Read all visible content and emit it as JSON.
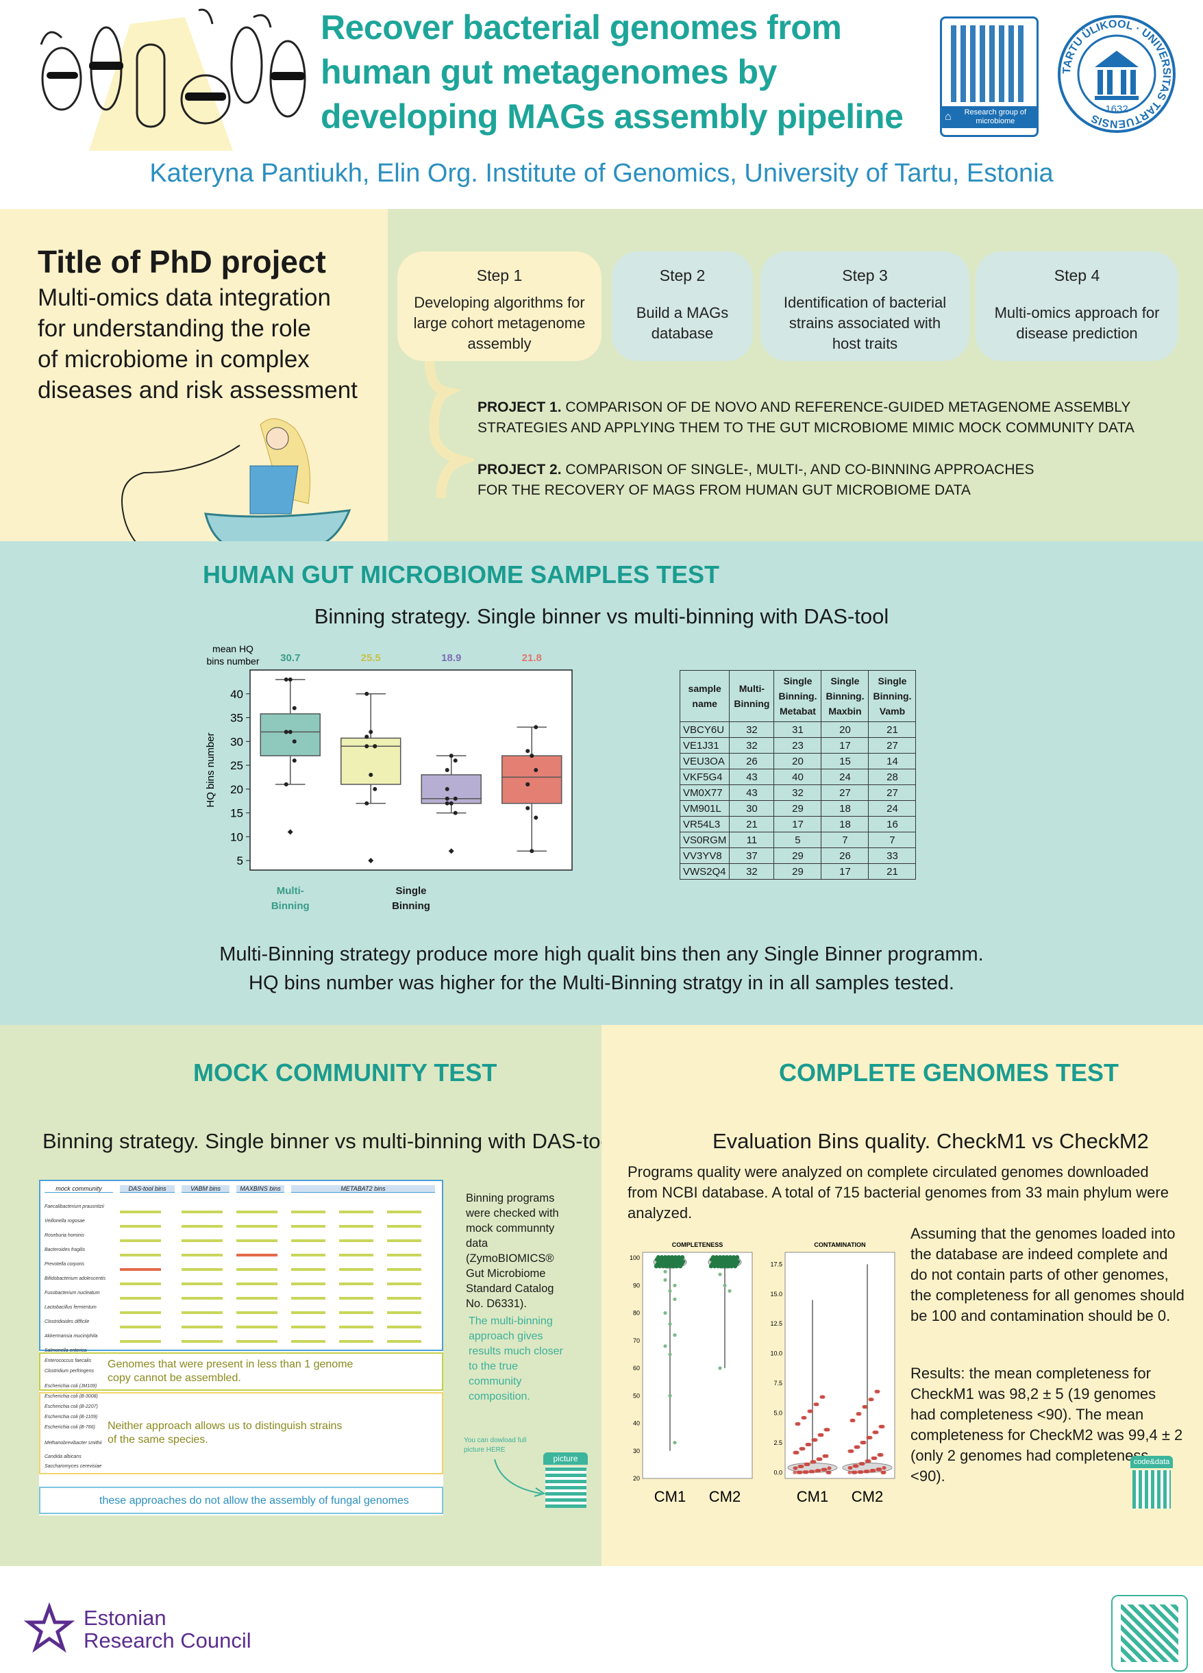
{
  "header": {
    "title_lines": [
      "Recover bacterial genomes from",
      "human gut metagenomes by",
      "developing MAGs assembly pipeline"
    ],
    "qr_label": "Research group of microbiome",
    "university_seal": "TARTU ÜLIKOOL UNIVERSITAS TARTUENSIS 1632",
    "authors": "Kateryna Pantiukh, Elin Org. Institute of Genomics, University of Tartu, Estonia"
  },
  "phd": {
    "title": "Title of PhD project",
    "lines": [
      "Multi-omics data integration",
      "for understanding the role",
      "of microbiome in complex",
      "diseases and risk assessment"
    ]
  },
  "steps": [
    {
      "label": "Step 1",
      "text": "Developing algorithms for large cohort metagenome assembly"
    },
    {
      "label": "Step 2",
      "text": "Build a MAGs database"
    },
    {
      "label": "Step 3",
      "text": "Identification of bacterial strains associated with host traits"
    },
    {
      "label": "Step 4",
      "text": "Multi-omics approach for disease prediction"
    }
  ],
  "projects": [
    {
      "label": "PROJECT 1.",
      "line1": "COMPARISON OF DE NOVO AND REFERENCE-GUIDED METAGENOME ASSEMBLY",
      "line2": "STRATEGIES AND APPLYING THEM TO THE GUT MICROBIOME MIMIC MOCK COMMUNITY DATA"
    },
    {
      "label": "PROJECT 2.",
      "line1": "COMPARISON OF SINGLE-, MULTI-, AND CO-BINNING APPROACHES",
      "line2": "FOR THE RECOVERY OF MAGS FROM HUMAN GUT MICROBIOME DATA"
    }
  ],
  "human_gut": {
    "title": "HUMAN GUT MICROBIOME SAMPLES TEST",
    "subtitle": "Binning strategy. Single binner vs multi-binning with DAS-tool",
    "conclusion_lines": [
      "Multi-Binning strategy produce more high qualit bins then any Single Binner programm.",
      "HQ bins number was higher for the Multi-Binning stratgy in in all samples tested."
    ]
  },
  "chart_data": [
    {
      "type": "box",
      "ylabel": "HQ bins number",
      "ylim": [
        3,
        45
      ],
      "yticks": [
        5,
        10,
        15,
        20,
        25,
        30,
        35,
        40
      ],
      "mean_label": "mean HQ bins number",
      "groups": [
        {
          "name": "Multi-Binning",
          "mean": "30.7",
          "color": "#8fc9bd",
          "mean_color": "#3a9c87",
          "values": [
            32,
            32,
            26,
            43,
            43,
            30,
            21,
            11,
            37,
            32
          ],
          "q1": 27,
          "median": 32,
          "q3": 35.8,
          "whisker_low": 21,
          "whisker_high": 43,
          "outliers": [
            11
          ]
        },
        {
          "name": "Metabat",
          "mean": "25.5",
          "color": "#eef0b4",
          "mean_color": "#c7c14a",
          "values": [
            31,
            23,
            20,
            40,
            32,
            29,
            17,
            5,
            29,
            29
          ],
          "q1": 21,
          "median": 29,
          "q3": 30.7,
          "whisker_low": 17,
          "whisker_high": 40,
          "outliers": [
            5
          ]
        },
        {
          "name": "Maxbin",
          "mean": "18.9",
          "color": "#b7afd3",
          "mean_color": "#7b6fb3",
          "values": [
            20,
            17,
            15,
            24,
            27,
            18,
            18,
            7,
            26,
            17
          ],
          "q1": 17,
          "median": 18,
          "q3": 23,
          "whisker_low": 15,
          "whisker_high": 27,
          "outliers": [
            7
          ]
        },
        {
          "name": "Vamb",
          "mean": "21.8",
          "color": "#e47f74",
          "mean_color": "#e0776c",
          "values": [
            21,
            27,
            14,
            28,
            27,
            24,
            16,
            7,
            33,
            21
          ],
          "q1": 17,
          "median": 22.5,
          "q3": 27,
          "whisker_low": 7,
          "whisker_high": 33,
          "outliers": []
        }
      ],
      "xlabels": [
        {
          "lines": [
            "Multi-",
            "Binning"
          ],
          "color": "#3a9c87"
        },
        {
          "lines": [
            "Single",
            "Binning"
          ],
          "color": "#1a1a1a"
        }
      ]
    },
    {
      "type": "table",
      "columns": [
        [
          "sample",
          "name"
        ],
        [
          "Multi-",
          "Binning"
        ],
        [
          "Single",
          "Binning.",
          "Metabat"
        ],
        [
          "Single",
          "Binning.",
          "Maxbin"
        ],
        [
          "Single",
          "Binning.",
          "Vamb"
        ]
      ],
      "rows": [
        [
          "VBCY6U",
          "32",
          "31",
          "20",
          "21"
        ],
        [
          "VE1J31",
          "32",
          "23",
          "17",
          "27"
        ],
        [
          "VEU3OA",
          "26",
          "20",
          "15",
          "14"
        ],
        [
          "VKF5G4",
          "43",
          "40",
          "24",
          "28"
        ],
        [
          "VM0X77",
          "43",
          "32",
          "27",
          "27"
        ],
        [
          "VM901L",
          "30",
          "29",
          "18",
          "24"
        ],
        [
          "VR54L3",
          "21",
          "17",
          "18",
          "16"
        ],
        [
          "VS0RGM",
          "11",
          "5",
          "7",
          "7"
        ],
        [
          "VV3YV8",
          "37",
          "29",
          "26",
          "33"
        ],
        [
          "VWS2Q4",
          "32",
          "29",
          "17",
          "21"
        ]
      ]
    },
    {
      "type": "violin",
      "title": "COMPLETENESS",
      "categories": [
        "CM1",
        "CM2"
      ],
      "yticks": [
        20,
        30,
        40,
        50,
        60,
        70,
        80,
        90,
        100
      ],
      "ylim": [
        20,
        102
      ],
      "mean": [
        98.2,
        99.4
      ]
    },
    {
      "type": "violin",
      "title": "CONTAMINATION",
      "categories": [
        "CM1",
        "CM2"
      ],
      "yticks": [
        "0.0",
        "2.5",
        "5.0",
        "7.5",
        "10.0",
        "12.5",
        "15.0",
        "17.5"
      ],
      "ylim": [
        -0.5,
        18.5
      ]
    }
  ],
  "mock": {
    "title": "MOCK COMMUNITY TEST",
    "subtitle": "Binning strategy. Single binner vs multi-binning with DAS-tool",
    "col_headers": [
      "mock community",
      "DAS-tool bins",
      "VABM bins",
      "MAXBINS bins",
      "METABAT2 bins"
    ],
    "species": [
      "Faecalibacterium prausnitzii",
      "Veillonella rogosae",
      "Roseburia hominis",
      "Bacteroides fragilis",
      "Prevotella corporis",
      "Bifidobacterium adolescentis",
      "Fusobacterium nucleatum",
      "Lactobacillus fermentum",
      "Clostridioides difficile",
      "Akkermansia muciniphila",
      "Salmonella enterica",
      "Enterococcus faecalis",
      "Clostridium perfringens",
      "Escherichia coli (JM109)",
      "Escherichia coli (B-3008)",
      "Escherichia coli (B-2207)",
      "Escherichia coli (B-1109)",
      "Escherichia coli (B-766)",
      "Methanobrevibacter smithii",
      "Candida albicans",
      "Saccharomyces cerevisiae"
    ],
    "note1": "Genomes that were present in less than 1 genome copy cannot be assembled.",
    "note2": "Neither approach allows us to distinguish strains of the same species.",
    "note3": "these approaches do not allow the assembly of fungal genomes",
    "side_text": "Binning programs were checked with mock communnty data (ZymoBIOMICS® Gut Microbiome Standard Catalog No. D6331).",
    "side_highlight": "The multi-binning approach gives results much closer to the true community composition.",
    "download_text": "You can dowload full picture HERE",
    "picture_label": "picture"
  },
  "complete": {
    "title": "COMPLETE GENOMES TEST",
    "subtitle": "Evaluation Bins quality. CheckM1 vs CheckM2",
    "intro": "Programs quality were analyzed on complete circulated genomes downloaded from NCBI database. A total of 715 bacterial genomes from 33 main phylum were analyzed.",
    "assume": "Assuming that the genomes loaded into the database are indeed complete and do not contain parts of other genomes, the completeness for all genomes should be 100 and contamination should be 0.",
    "results": "Results: the mean completeness for CheckM1 was 98,2 ± 5 (19 genomes had completeness <90). The mean completeness for CheckM2 was 99,4 ± 2 (only 2 genomes had completeness <90).",
    "code_label": "code&data"
  },
  "footer": {
    "org_line1": "Estonian",
    "org_line2": "Research Council"
  },
  "colors": {
    "title_teal": "#1ea59a",
    "author_blue": "#2a8fc0",
    "qr_blue": "#1d6fb3",
    "green_qr": "#3cb59c",
    "purple": "#5b2d8e"
  }
}
